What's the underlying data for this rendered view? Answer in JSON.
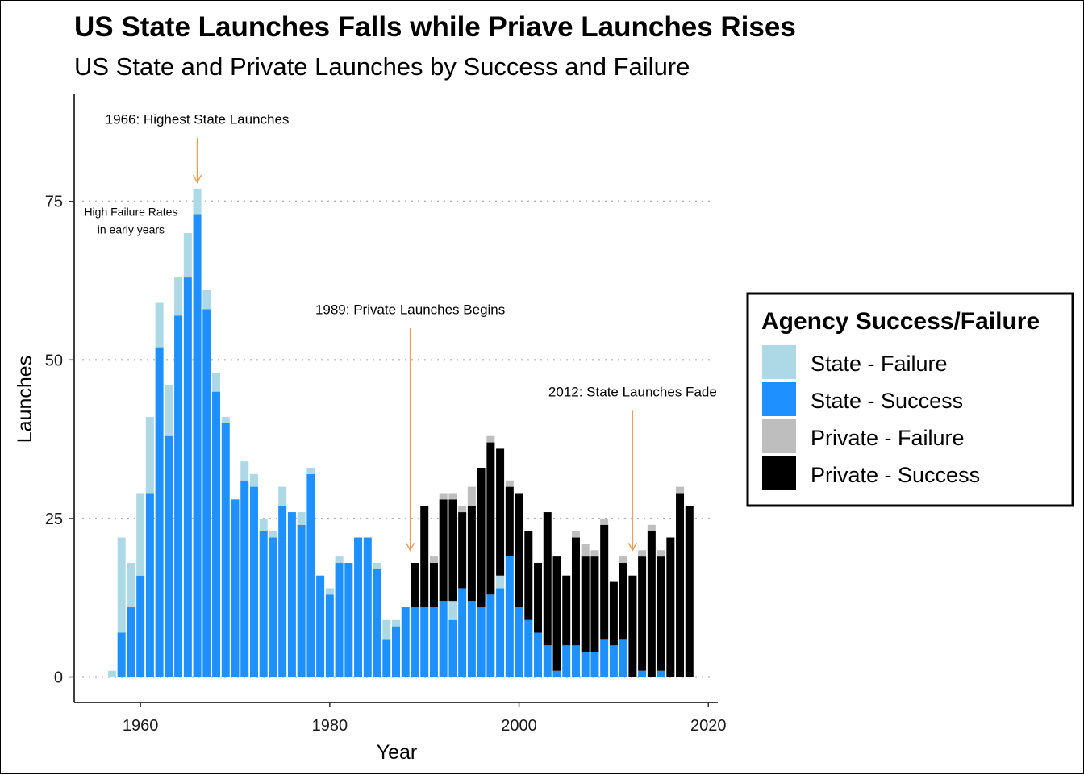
{
  "chart_data": {
    "type": "bar",
    "stacked": true,
    "title": "US State Launches Falls while Priave Launches Rises",
    "subtitle": "US State and Private Launches by Success and Failure",
    "xlabel": "Year",
    "ylabel": "Launches",
    "xlim": [
      1953,
      2021
    ],
    "ylim": [
      -4,
      92
    ],
    "x_ticks": [
      1960,
      1980,
      2000,
      2020
    ],
    "y_ticks": [
      0,
      25,
      50,
      75
    ],
    "grid": "horizontal dotted",
    "legend": {
      "title": "Agency Success/Failure",
      "position": "right",
      "entries": [
        "State - Failure",
        "State - Success",
        "Private - Failure",
        "Private - Success"
      ]
    },
    "colors": {
      "State - Failure": "#ADD8E6",
      "State - Success": "#1E90FF",
      "Private - Failure": "#BEBEBE",
      "Private - Success": "#000000",
      "annotation_arrow": "#E8A060"
    },
    "stack_order": [
      "State - Success",
      "State - Failure",
      "Private - Success",
      "Private - Failure"
    ],
    "years": [
      1957,
      1958,
      1959,
      1960,
      1961,
      1962,
      1963,
      1964,
      1965,
      1966,
      1967,
      1968,
      1969,
      1970,
      1971,
      1972,
      1973,
      1974,
      1975,
      1976,
      1977,
      1978,
      1979,
      1980,
      1981,
      1982,
      1983,
      1984,
      1985,
      1986,
      1987,
      1988,
      1989,
      1990,
      1991,
      1992,
      1993,
      1994,
      1995,
      1996,
      1997,
      1998,
      1999,
      2000,
      2001,
      2002,
      2003,
      2004,
      2005,
      2006,
      2007,
      2008,
      2009,
      2010,
      2011,
      2012,
      2013,
      2014,
      2015,
      2016,
      2017,
      2018
    ],
    "series": [
      {
        "name": "State - Success",
        "values": [
          0,
          7,
          11,
          16,
          29,
          52,
          38,
          57,
          63,
          73,
          58,
          45,
          40,
          28,
          31,
          30,
          23,
          22,
          27,
          26,
          24,
          32,
          16,
          13,
          18,
          18,
          22,
          22,
          17,
          6,
          8,
          11,
          11,
          11,
          11,
          12,
          9,
          14,
          12,
          11,
          13,
          14,
          19,
          11,
          9,
          7,
          5,
          1,
          5,
          5,
          4,
          4,
          6,
          5,
          6,
          0,
          1,
          0,
          1,
          0,
          0,
          0
        ]
      },
      {
        "name": "State - Failure",
        "values": [
          1,
          15,
          7,
          13,
          12,
          7,
          8,
          6,
          7,
          4,
          3,
          3,
          1,
          0,
          3,
          2,
          2,
          1,
          3,
          0,
          2,
          1,
          0,
          1,
          1,
          0,
          0,
          0,
          1,
          3,
          1,
          0,
          0,
          0,
          0,
          0,
          3,
          0,
          0,
          0,
          0,
          2,
          0,
          0,
          0,
          0,
          0,
          0,
          0,
          0,
          0,
          0,
          0,
          0,
          0,
          0,
          0,
          0,
          0,
          0,
          0,
          0
        ]
      },
      {
        "name": "Private - Success",
        "values": [
          0,
          0,
          0,
          0,
          0,
          0,
          0,
          0,
          0,
          0,
          0,
          0,
          0,
          0,
          0,
          0,
          0,
          0,
          0,
          0,
          0,
          0,
          0,
          0,
          0,
          0,
          0,
          0,
          0,
          0,
          0,
          0,
          7,
          16,
          7,
          16,
          16,
          12,
          15,
          22,
          24,
          20,
          11,
          18,
          14,
          11,
          21,
          18,
          11,
          17,
          15,
          15,
          18,
          10,
          12,
          16,
          18,
          23,
          18,
          22,
          29,
          27
        ]
      },
      {
        "name": "Private - Failure",
        "values": [
          0,
          0,
          0,
          0,
          0,
          0,
          0,
          0,
          0,
          0,
          0,
          0,
          0,
          0,
          0,
          0,
          0,
          0,
          0,
          0,
          0,
          0,
          0,
          0,
          0,
          0,
          0,
          0,
          0,
          0,
          0,
          0,
          0,
          0,
          1,
          1,
          1,
          1,
          3,
          0,
          1,
          0,
          1,
          0,
          0,
          0,
          0,
          0,
          0,
          1,
          2,
          1,
          1,
          0,
          1,
          0,
          1,
          1,
          1,
          0,
          1,
          0
        ]
      }
    ],
    "annotations": [
      {
        "text": "1966: Highest State Launches",
        "year": 1966,
        "label_y": 88,
        "arrow_from": 85,
        "arrow_to": 78
      },
      {
        "text": "High Failure Rates",
        "year": 1959,
        "label_y": 73.5
      },
      {
        "text": "in early years",
        "year": 1959,
        "label_y": 70.7
      },
      {
        "text": "1989: Private Launches Begins",
        "year": 1988.5,
        "label_y": 58,
        "arrow_from": 55,
        "arrow_to": 20
      },
      {
        "text": "2012: State Launches Fade",
        "year": 2012,
        "label_y": 45,
        "arrow_from": 42,
        "arrow_to": 20
      }
    ]
  }
}
